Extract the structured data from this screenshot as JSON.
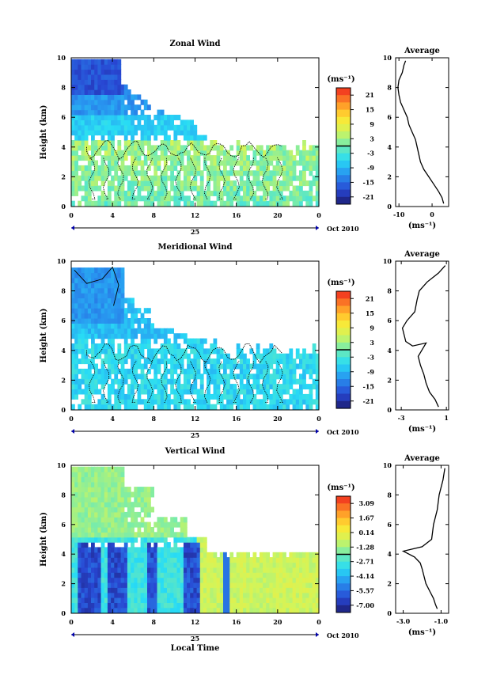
{
  "chart_data": [
    {
      "type": "heatmap",
      "title": "Zonal Wind",
      "ylabel": "Height (km)",
      "x_ticks": [
        "0",
        "4",
        "8",
        "12",
        "16",
        "20",
        "0"
      ],
      "y_ticks": [
        "0",
        "2",
        "4",
        "6",
        "8",
        "10"
      ],
      "xlim": [
        0,
        24
      ],
      "ylim": [
        0,
        10
      ],
      "day_label": "25",
      "month_label": "Oct 2010",
      "colorbar": {
        "unit": "(ms⁻¹)",
        "ticks": [
          "21",
          "15",
          "9",
          "3",
          "-3",
          "-9",
          "-15",
          "-21"
        ],
        "range": [
          -24,
          24
        ]
      },
      "profile": {
        "title": "Average",
        "x_ticks": [
          "-10",
          "0"
        ],
        "xlim": [
          -11,
          5
        ],
        "xlabel": "(ms⁻¹)",
        "y_ticks": [
          "0",
          "2",
          "4",
          "6",
          "8",
          "10"
        ],
        "points": [
          [
            3.5,
            0.2
          ],
          [
            3.0,
            0.6
          ],
          [
            2.0,
            1.0
          ],
          [
            0.5,
            1.5
          ],
          [
            -1.0,
            2.0
          ],
          [
            -2.5,
            2.5
          ],
          [
            -3.5,
            3.0
          ],
          [
            -4.0,
            3.5
          ],
          [
            -4.5,
            4.0
          ],
          [
            -5.0,
            4.5
          ],
          [
            -6.0,
            5.0
          ],
          [
            -7.0,
            5.5
          ],
          [
            -7.5,
            6.0
          ],
          [
            -8.5,
            6.5
          ],
          [
            -9.5,
            7.0
          ],
          [
            -10.0,
            7.5
          ],
          [
            -10.3,
            8.0
          ],
          [
            -10.0,
            8.5
          ],
          [
            -9.0,
            9.0
          ],
          [
            -8.5,
            9.5
          ],
          [
            -8.0,
            9.8
          ]
        ]
      }
    },
    {
      "type": "heatmap",
      "title": "Meridional Wind",
      "ylabel": "Height (km)",
      "x_ticks": [
        "0",
        "4",
        "8",
        "12",
        "16",
        "20",
        "0"
      ],
      "y_ticks": [
        "0",
        "2",
        "4",
        "6",
        "8",
        "10"
      ],
      "xlim": [
        0,
        24
      ],
      "ylim": [
        0,
        10
      ],
      "day_label": "25",
      "month_label": "Oct 2010",
      "colorbar": {
        "unit": "(ms⁻¹)",
        "ticks": [
          "21",
          "15",
          "9",
          "3",
          "-3",
          "-9",
          "-15",
          "-21"
        ],
        "range": [
          -24,
          24
        ]
      },
      "profile": {
        "title": "Average",
        "x_ticks": [
          "-3",
          "1"
        ],
        "xlim": [
          -3.5,
          1.2
        ],
        "xlabel": "(ms⁻¹)",
        "y_ticks": [
          "0",
          "2",
          "4",
          "6",
          "8",
          "10"
        ],
        "points": [
          [
            0.3,
            0.2
          ],
          [
            0.0,
            0.7
          ],
          [
            -0.5,
            1.2
          ],
          [
            -0.8,
            1.8
          ],
          [
            -1.0,
            2.4
          ],
          [
            -1.3,
            3.0
          ],
          [
            -1.5,
            3.6
          ],
          [
            -0.8,
            4.5
          ],
          [
            -2.0,
            4.3
          ],
          [
            -2.6,
            4.6
          ],
          [
            -2.9,
            5.5
          ],
          [
            -2.5,
            6.0
          ],
          [
            -1.8,
            6.6
          ],
          [
            -1.6,
            7.4
          ],
          [
            -1.4,
            8.0
          ],
          [
            -0.7,
            8.6
          ],
          [
            0.3,
            9.2
          ],
          [
            0.9,
            9.7
          ]
        ]
      }
    },
    {
      "type": "heatmap",
      "title": "Vertical Wind",
      "ylabel": "Height (km)",
      "xlabel": "Local Time",
      "x_ticks": [
        "0",
        "4",
        "8",
        "12",
        "16",
        "20",
        "0"
      ],
      "y_ticks": [
        "0",
        "2",
        "4",
        "6",
        "8",
        "10"
      ],
      "xlim": [
        0,
        24
      ],
      "ylim": [
        0,
        10
      ],
      "day_label": "25",
      "month_label": "Oct 2010",
      "colorbar": {
        "unit": "(ms⁻¹)",
        "ticks": [
          "3.09",
          "1.67",
          "0.14",
          "-1.28",
          "-2.71",
          "-4.14",
          "-5.57",
          "-7.00"
        ],
        "range": [
          -8.0,
          4.0
        ]
      },
      "profile": {
        "title": "Average",
        "x_ticks": [
          "-3.0",
          "-1.0"
        ],
        "xlim": [
          -3.4,
          -0.6
        ],
        "xlabel": "(ms⁻¹)",
        "y_ticks": [
          "0",
          "2",
          "4",
          "6",
          "8",
          "10"
        ],
        "points": [
          [
            -1.2,
            0.3
          ],
          [
            -1.3,
            0.6
          ],
          [
            -1.4,
            1.0
          ],
          [
            -1.6,
            1.5
          ],
          [
            -1.8,
            2.0
          ],
          [
            -1.9,
            2.5
          ],
          [
            -2.0,
            3.0
          ],
          [
            -2.1,
            3.4
          ],
          [
            -2.4,
            3.8
          ],
          [
            -3.0,
            4.2
          ],
          [
            -2.0,
            4.5
          ],
          [
            -1.5,
            5.0
          ],
          [
            -1.4,
            6.0
          ],
          [
            -1.2,
            7.0
          ],
          [
            -1.1,
            8.0
          ],
          [
            -0.9,
            9.0
          ],
          [
            -0.8,
            9.8
          ]
        ]
      }
    }
  ]
}
